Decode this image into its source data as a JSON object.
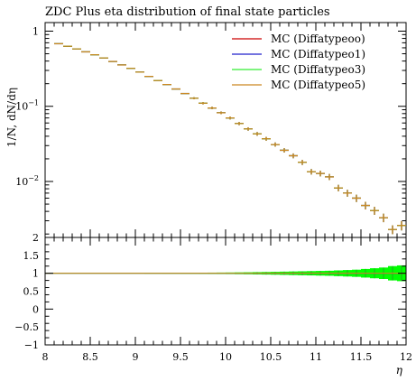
{
  "chart_data": {
    "type": "line",
    "title": "ZDC Plus eta distribution of final state particles",
    "ylabel": "1/N, dN/dη",
    "xlabel": "η",
    "log_y": true,
    "ylim": [
      0.0018,
      1.3
    ],
    "xlim": [
      8,
      12
    ],
    "x_ticks": [
      "8",
      "8.5",
      "9",
      "9.5",
      "10",
      "10.5",
      "11",
      "11.5",
      "12"
    ],
    "y_ticks": [
      {
        "mantissa": "1",
        "exp": ""
      },
      {
        "mantissa": "10",
        "exp": "−1"
      },
      {
        "mantissa": "10",
        "exp": "−2"
      }
    ],
    "legend_position": "top-right",
    "series": [
      {
        "name": "MC (Diffatypeoo)",
        "color": "#cc0000"
      },
      {
        "name": "MC (Diffatypeo1)",
        "color": "#2020cc"
      },
      {
        "name": "MC (Diffatypeo3)",
        "color": "#33ee33"
      },
      {
        "name": "MC (Diffatypeo5)",
        "color": "#cc8822"
      }
    ],
    "bins": [
      {
        "x": [
          8.1,
          8.2
        ],
        "y": 0.68
      },
      {
        "x": [
          8.2,
          8.3
        ],
        "y": 0.63
      },
      {
        "x": [
          8.3,
          8.4
        ],
        "y": 0.58
      },
      {
        "x": [
          8.4,
          8.5
        ],
        "y": 0.53
      },
      {
        "x": [
          8.5,
          8.6
        ],
        "y": 0.485
      },
      {
        "x": [
          8.6,
          8.7
        ],
        "y": 0.44
      },
      {
        "x": [
          8.7,
          8.8
        ],
        "y": 0.395
      },
      {
        "x": [
          8.8,
          8.9
        ],
        "y": 0.355
      },
      {
        "x": [
          8.9,
          9.0
        ],
        "y": 0.32
      },
      {
        "x": [
          9.0,
          9.1
        ],
        "y": 0.285
      },
      {
        "x": [
          9.1,
          9.2
        ],
        "y": 0.25
      },
      {
        "x": [
          9.2,
          9.3
        ],
        "y": 0.22
      },
      {
        "x": [
          9.3,
          9.4
        ],
        "y": 0.195
      },
      {
        "x": [
          9.4,
          9.5
        ],
        "y": 0.17
      },
      {
        "x": [
          9.5,
          9.6
        ],
        "y": 0.148
      },
      {
        "x": [
          9.6,
          9.7
        ],
        "y": 0.128
      },
      {
        "x": [
          9.7,
          9.8
        ],
        "y": 0.11
      },
      {
        "x": [
          9.8,
          9.9
        ],
        "y": 0.095
      },
      {
        "x": [
          9.9,
          10.0
        ],
        "y": 0.082
      },
      {
        "x": [
          10.0,
          10.1
        ],
        "y": 0.07
      },
      {
        "x": [
          10.1,
          10.2
        ],
        "y": 0.059
      },
      {
        "x": [
          10.2,
          10.3
        ],
        "y": 0.05
      },
      {
        "x": [
          10.3,
          10.4
        ],
        "y": 0.043
      },
      {
        "x": [
          10.4,
          10.5
        ],
        "y": 0.037
      },
      {
        "x": [
          10.5,
          10.6
        ],
        "y": 0.031
      },
      {
        "x": [
          10.6,
          10.7
        ],
        "y": 0.026
      },
      {
        "x": [
          10.7,
          10.8
        ],
        "y": 0.022
      },
      {
        "x": [
          10.8,
          10.9
        ],
        "y": 0.018
      },
      {
        "x": [
          10.9,
          11.0
        ],
        "y": 0.0135
      },
      {
        "x": [
          11.0,
          11.1
        ],
        "y": 0.0128
      },
      {
        "x": [
          11.1,
          11.2
        ],
        "y": 0.0115
      },
      {
        "x": [
          11.2,
          11.3
        ],
        "y": 0.0082
      },
      {
        "x": [
          11.3,
          11.4
        ],
        "y": 0.007
      },
      {
        "x": [
          11.4,
          11.5
        ],
        "y": 0.006
      },
      {
        "x": [
          11.5,
          11.6
        ],
        "y": 0.0048
      },
      {
        "x": [
          11.6,
          11.7
        ],
        "y": 0.0041
      },
      {
        "x": [
          11.7,
          11.8
        ],
        "y": 0.0033
      },
      {
        "x": [
          11.8,
          11.9
        ],
        "y": 0.0023
      },
      {
        "x": [
          11.9,
          12.0
        ],
        "y": 0.0026
      }
    ],
    "ratio": {
      "ylim": [
        -1,
        2
      ],
      "y_ticks": [
        "2",
        "1.5",
        "1",
        "0.5",
        "0",
        "−0.5",
        "−1"
      ],
      "band_color": "#00ff00",
      "band_halfwidth": [
        0.01,
        0.01,
        0.01,
        0.01,
        0.01,
        0.01,
        0.01,
        0.01,
        0.01,
        0.01,
        0.012,
        0.012,
        0.013,
        0.013,
        0.014,
        0.015,
        0.016,
        0.018,
        0.02,
        0.022,
        0.025,
        0.028,
        0.032,
        0.036,
        0.04,
        0.045,
        0.05,
        0.055,
        0.06,
        0.065,
        0.07,
        0.08,
        0.09,
        0.1,
        0.12,
        0.14,
        0.16,
        0.2,
        0.22
      ]
    }
  }
}
